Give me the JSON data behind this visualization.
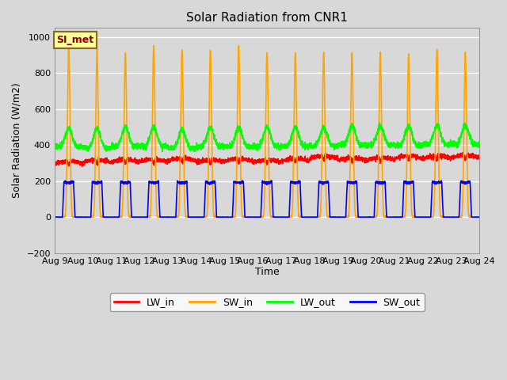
{
  "title": "Solar Radiation from CNR1",
  "xlabel": "Time",
  "ylabel": "Solar Radiation (W/m2)",
  "ylim": [
    -200,
    1050
  ],
  "yticks": [
    -200,
    0,
    200,
    400,
    600,
    800,
    1000
  ],
  "date_labels": [
    "Aug 9",
    "Aug 10",
    "Aug 11",
    "Aug 12",
    "Aug 13",
    "Aug 14",
    "Aug 15",
    "Aug 16",
    "Aug 17",
    "Aug 18",
    "Aug 19",
    "Aug 20",
    "Aug 21",
    "Aug 22",
    "Aug 23",
    "Aug 24"
  ],
  "bg_color": "#d8d8d8",
  "plot_bg": "#d8d8d8",
  "legend_label": "SI_met",
  "legend_bg": "#ffff99",
  "legend_border": "#8b6914",
  "series_colors": {
    "LW_in": "#ff0000",
    "SW_in": "#ffa500",
    "LW_out": "#00ff00",
    "SW_out": "#0000ff"
  },
  "n_days": 15,
  "points_per_day": 288,
  "figwidth": 6.4,
  "figheight": 4.8,
  "dpi": 100
}
